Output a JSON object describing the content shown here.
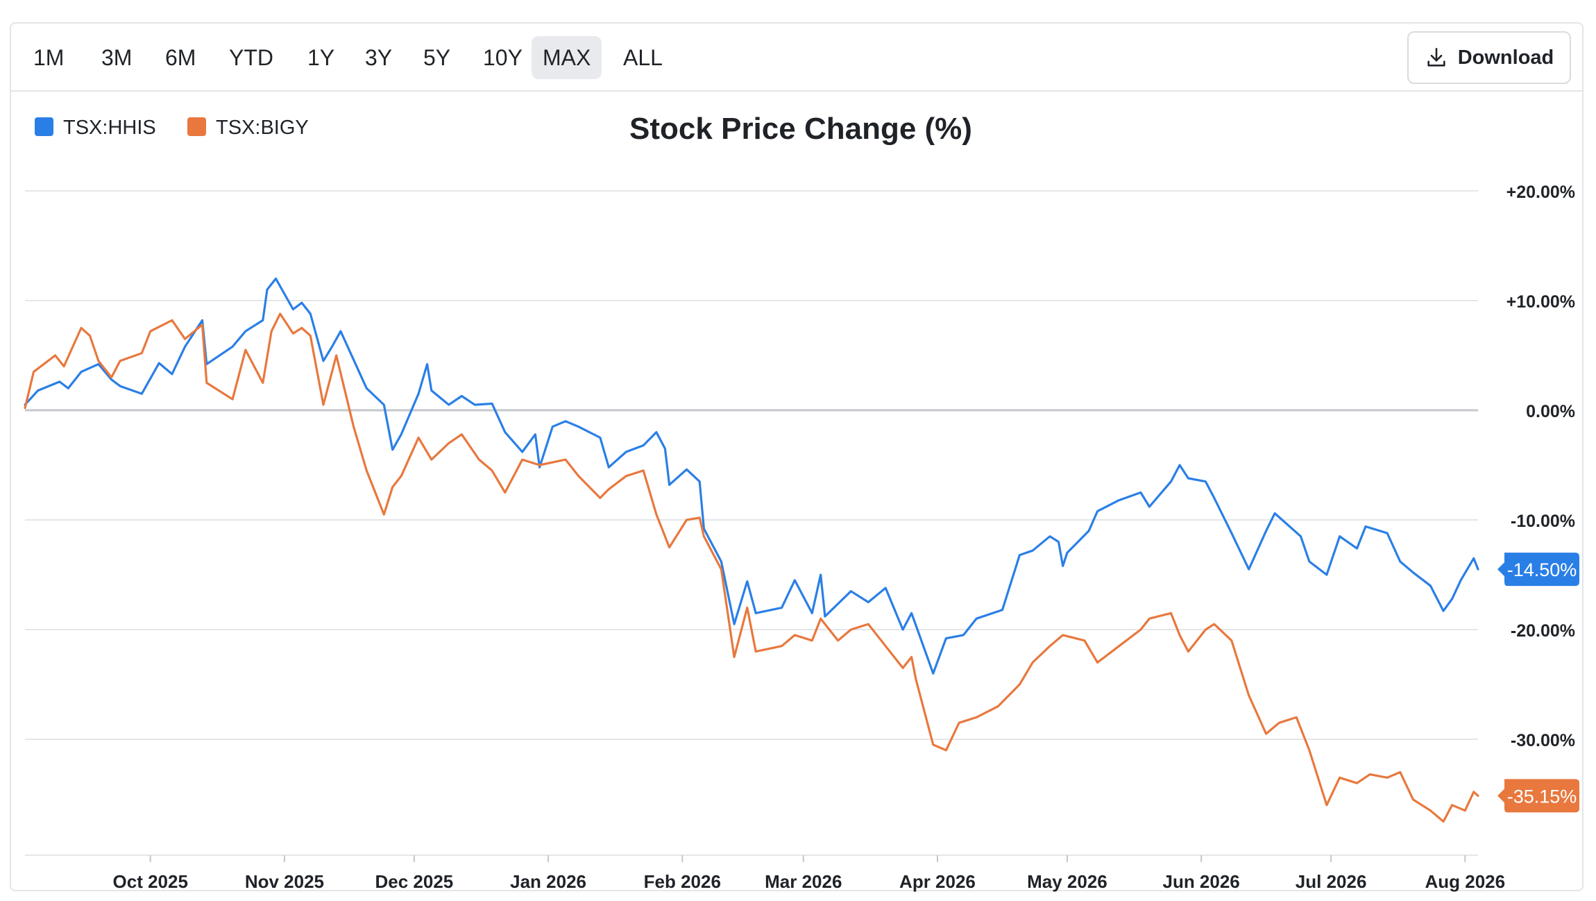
{
  "toolbar": {
    "ranges": [
      "1M",
      "3M",
      "6M",
      "YTD",
      "1Y",
      "3Y",
      "5Y",
      "10Y",
      "MAX",
      "ALL"
    ],
    "active_range": "MAX",
    "download_label": "Download",
    "download_icon": "download-icon"
  },
  "colors": {
    "hhis": "#2a7fe6",
    "bigy": "#e8783e",
    "grid": "#e4e6e9",
    "zero_line": "#c4c7cc",
    "axis_text": "#1f2328"
  },
  "chart_data": {
    "type": "line",
    "title": "Stock Price Change (%)",
    "xlabel": "",
    "ylabel": "",
    "ylim": [
      -40,
      20
    ],
    "y_ticks": [
      20,
      10,
      0,
      -10,
      -20,
      -30
    ],
    "y_tick_labels": [
      "+20.00%",
      "+10.00%",
      "0.00%",
      "-10.00%",
      "-20.00%",
      "-30.00%"
    ],
    "x_range": [
      "2025-09-02",
      "2026-08-04"
    ],
    "x_ticks": [
      "2025-10-01",
      "2025-11-01",
      "2025-12-01",
      "2026-01-01",
      "2026-02-01",
      "2026-03-01",
      "2026-04-01",
      "2026-05-01",
      "2026-06-01",
      "2026-07-01",
      "2026-08-01"
    ],
    "x_tick_labels": [
      "Oct 2025",
      "Nov 2025",
      "Dec 2025",
      "Jan 2026",
      "Feb 2026",
      "Mar 2026",
      "Apr 2026",
      "May 2026",
      "Jun 2026",
      "Jul 2026",
      "Aug 2026"
    ],
    "legend_position": "top-left",
    "grid": true,
    "series": [
      {
        "name": "TSX:HHIS",
        "color": "#2a7fe6",
        "last_label": "-14.50%",
        "points": [
          [
            "2025-09-02",
            0.5
          ],
          [
            "2025-09-05",
            1.8
          ],
          [
            "2025-09-10",
            2.6
          ],
          [
            "2025-09-12",
            2.0
          ],
          [
            "2025-09-15",
            3.5
          ],
          [
            "2025-09-19",
            4.2
          ],
          [
            "2025-09-22",
            2.8
          ],
          [
            "2025-09-24",
            2.2
          ],
          [
            "2025-09-29",
            1.5
          ],
          [
            "2025-10-03",
            4.3
          ],
          [
            "2025-10-06",
            3.3
          ],
          [
            "2025-10-09",
            5.8
          ],
          [
            "2025-10-13",
            8.2
          ],
          [
            "2025-10-14",
            4.2
          ],
          [
            "2025-10-20",
            5.8
          ],
          [
            "2025-10-23",
            7.2
          ],
          [
            "2025-10-27",
            8.2
          ],
          [
            "2025-10-28",
            11.0
          ],
          [
            "2025-10-30",
            12.0
          ],
          [
            "2025-11-03",
            9.2
          ],
          [
            "2025-11-05",
            9.8
          ],
          [
            "2025-11-07",
            8.8
          ],
          [
            "2025-11-10",
            4.5
          ],
          [
            "2025-11-12",
            5.8
          ],
          [
            "2025-11-14",
            7.2
          ],
          [
            "2025-11-17",
            4.6
          ],
          [
            "2025-11-20",
            2.0
          ],
          [
            "2025-11-24",
            0.5
          ],
          [
            "2025-11-26",
            -3.6
          ],
          [
            "2025-11-28",
            -2.2
          ],
          [
            "2025-12-02",
            1.5
          ],
          [
            "2025-12-04",
            4.2
          ],
          [
            "2025-12-05",
            1.8
          ],
          [
            "2025-12-09",
            0.5
          ],
          [
            "2025-12-12",
            1.3
          ],
          [
            "2025-12-15",
            0.5
          ],
          [
            "2025-12-19",
            0.6
          ],
          [
            "2025-12-22",
            -2.0
          ],
          [
            "2025-12-26",
            -3.8
          ],
          [
            "2025-12-29",
            -2.2
          ],
          [
            "2025-12-30",
            -5.2
          ],
          [
            "2026-01-02",
            -1.5
          ],
          [
            "2026-01-05",
            -1.0
          ],
          [
            "2026-01-08",
            -1.5
          ],
          [
            "2026-01-13",
            -2.5
          ],
          [
            "2026-01-15",
            -5.2
          ],
          [
            "2026-01-19",
            -3.8
          ],
          [
            "2026-01-23",
            -3.2
          ],
          [
            "2026-01-26",
            -2.0
          ],
          [
            "2026-01-28",
            -3.5
          ],
          [
            "2026-01-29",
            -6.8
          ],
          [
            "2026-02-02",
            -5.4
          ],
          [
            "2026-02-05",
            -6.5
          ],
          [
            "2026-02-06",
            -10.8
          ],
          [
            "2026-02-10",
            -13.8
          ],
          [
            "2026-02-13",
            -19.5
          ],
          [
            "2026-02-16",
            -15.6
          ],
          [
            "2026-02-18",
            -18.5
          ],
          [
            "2026-02-24",
            -18.0
          ],
          [
            "2026-02-27",
            -15.5
          ],
          [
            "2026-03-03",
            -18.5
          ],
          [
            "2026-03-05",
            -15.0
          ],
          [
            "2026-03-06",
            -18.8
          ],
          [
            "2026-03-12",
            -16.5
          ],
          [
            "2026-03-16",
            -17.5
          ],
          [
            "2026-03-20",
            -16.2
          ],
          [
            "2026-03-24",
            -20.0
          ],
          [
            "2026-03-26",
            -18.5
          ],
          [
            "2026-03-31",
            -24.0
          ],
          [
            "2026-04-03",
            -20.8
          ],
          [
            "2026-04-07",
            -20.5
          ],
          [
            "2026-04-10",
            -19.0
          ],
          [
            "2026-04-16",
            -18.2
          ],
          [
            "2026-04-20",
            -13.2
          ],
          [
            "2026-04-23",
            -12.8
          ],
          [
            "2026-04-27",
            -11.5
          ],
          [
            "2026-04-29",
            -12.0
          ],
          [
            "2026-04-30",
            -14.2
          ],
          [
            "2026-05-01",
            -13.0
          ],
          [
            "2026-05-06",
            -11.0
          ],
          [
            "2026-05-08",
            -9.2
          ],
          [
            "2026-05-13",
            -8.2
          ],
          [
            "2026-05-18",
            -7.5
          ],
          [
            "2026-05-20",
            -8.8
          ],
          [
            "2026-05-25",
            -6.5
          ],
          [
            "2026-05-27",
            -5.0
          ],
          [
            "2026-05-29",
            -6.2
          ],
          [
            "2026-06-02",
            -6.5
          ],
          [
            "2026-06-04",
            -8.0
          ],
          [
            "2026-06-08",
            -11.2
          ],
          [
            "2026-06-12",
            -14.5
          ],
          [
            "2026-06-16",
            -11.0
          ],
          [
            "2026-06-18",
            -9.4
          ],
          [
            "2026-06-24",
            -11.5
          ],
          [
            "2026-06-26",
            -13.8
          ],
          [
            "2026-06-30",
            -15.0
          ],
          [
            "2026-07-03",
            -11.5
          ],
          [
            "2026-07-07",
            -12.6
          ],
          [
            "2026-07-09",
            -10.6
          ],
          [
            "2026-07-14",
            -11.2
          ],
          [
            "2026-07-17",
            -13.8
          ],
          [
            "2026-07-20",
            -14.8
          ],
          [
            "2026-07-24",
            -16.0
          ],
          [
            "2026-07-27",
            -18.3
          ],
          [
            "2026-07-29",
            -17.2
          ],
          [
            "2026-07-31",
            -15.5
          ],
          [
            "2026-08-03",
            -13.5
          ],
          [
            "2026-08-04",
            -14.5
          ]
        ]
      },
      {
        "name": "TSX:BIGY",
        "color": "#e8783e",
        "last_label": "-35.15%",
        "points": [
          [
            "2025-09-02",
            0.2
          ],
          [
            "2025-09-04",
            3.5
          ],
          [
            "2025-09-09",
            5.0
          ],
          [
            "2025-09-11",
            4.0
          ],
          [
            "2025-09-15",
            7.5
          ],
          [
            "2025-09-17",
            6.8
          ],
          [
            "2025-09-19",
            4.5
          ],
          [
            "2025-09-22",
            3.0
          ],
          [
            "2025-09-24",
            4.5
          ],
          [
            "2025-09-29",
            5.2
          ],
          [
            "2025-10-01",
            7.2
          ],
          [
            "2025-10-06",
            8.2
          ],
          [
            "2025-10-09",
            6.5
          ],
          [
            "2025-10-13",
            7.8
          ],
          [
            "2025-10-14",
            2.5
          ],
          [
            "2025-10-20",
            1.0
          ],
          [
            "2025-10-23",
            5.5
          ],
          [
            "2025-10-27",
            2.5
          ],
          [
            "2025-10-29",
            7.2
          ],
          [
            "2025-10-31",
            8.8
          ],
          [
            "2025-11-03",
            7.0
          ],
          [
            "2025-11-05",
            7.5
          ],
          [
            "2025-11-07",
            6.8
          ],
          [
            "2025-11-10",
            0.5
          ],
          [
            "2025-11-13",
            5.0
          ],
          [
            "2025-11-17",
            -1.5
          ],
          [
            "2025-11-20",
            -5.5
          ],
          [
            "2025-11-24",
            -9.5
          ],
          [
            "2025-11-26",
            -7.0
          ],
          [
            "2025-11-28",
            -6.0
          ],
          [
            "2025-12-02",
            -2.5
          ],
          [
            "2025-12-05",
            -4.5
          ],
          [
            "2025-12-09",
            -3.0
          ],
          [
            "2025-12-12",
            -2.2
          ],
          [
            "2025-12-16",
            -4.5
          ],
          [
            "2025-12-19",
            -5.5
          ],
          [
            "2025-12-22",
            -7.5
          ],
          [
            "2025-12-26",
            -4.5
          ],
          [
            "2025-12-30",
            -5.0
          ],
          [
            "2026-01-05",
            -4.5
          ],
          [
            "2026-01-08",
            -6.0
          ],
          [
            "2026-01-13",
            -8.0
          ],
          [
            "2026-01-15",
            -7.2
          ],
          [
            "2026-01-19",
            -6.0
          ],
          [
            "2026-01-23",
            -5.5
          ],
          [
            "2026-01-26",
            -9.5
          ],
          [
            "2026-01-29",
            -12.5
          ],
          [
            "2026-02-02",
            -10.0
          ],
          [
            "2026-02-05",
            -9.8
          ],
          [
            "2026-02-06",
            -11.5
          ],
          [
            "2026-02-10",
            -14.5
          ],
          [
            "2026-02-13",
            -22.5
          ],
          [
            "2026-02-16",
            -18.0
          ],
          [
            "2026-02-18",
            -22.0
          ],
          [
            "2026-02-24",
            -21.5
          ],
          [
            "2026-02-27",
            -20.5
          ],
          [
            "2026-03-03",
            -21.0
          ],
          [
            "2026-03-05",
            -19.0
          ],
          [
            "2026-03-09",
            -21.0
          ],
          [
            "2026-03-12",
            -20.0
          ],
          [
            "2026-03-16",
            -19.5
          ],
          [
            "2026-03-20",
            -21.5
          ],
          [
            "2026-03-24",
            -23.5
          ],
          [
            "2026-03-26",
            -22.5
          ],
          [
            "2026-03-27",
            -24.5
          ],
          [
            "2026-03-31",
            -30.5
          ],
          [
            "2026-04-03",
            -31.0
          ],
          [
            "2026-04-06",
            -28.5
          ],
          [
            "2026-04-10",
            -28.0
          ],
          [
            "2026-04-15",
            -27.0
          ],
          [
            "2026-04-20",
            -25.0
          ],
          [
            "2026-04-23",
            -23.0
          ],
          [
            "2026-04-27",
            -21.5
          ],
          [
            "2026-04-30",
            -20.5
          ],
          [
            "2026-05-05",
            -21.0
          ],
          [
            "2026-05-08",
            -23.0
          ],
          [
            "2026-05-13",
            -21.5
          ],
          [
            "2026-05-18",
            -20.0
          ],
          [
            "2026-05-20",
            -19.0
          ],
          [
            "2026-05-25",
            -18.5
          ],
          [
            "2026-05-27",
            -20.5
          ],
          [
            "2026-05-29",
            -22.0
          ],
          [
            "2026-06-02",
            -20.0
          ],
          [
            "2026-06-04",
            -19.5
          ],
          [
            "2026-06-08",
            -21.0
          ],
          [
            "2026-06-12",
            -26.0
          ],
          [
            "2026-06-16",
            -29.5
          ],
          [
            "2026-06-19",
            -28.5
          ],
          [
            "2026-06-23",
            -28.0
          ],
          [
            "2026-06-26",
            -31.0
          ],
          [
            "2026-06-30",
            -36.0
          ],
          [
            "2026-07-03",
            -33.5
          ],
          [
            "2026-07-07",
            -34.0
          ],
          [
            "2026-07-10",
            -33.2
          ],
          [
            "2026-07-14",
            -33.5
          ],
          [
            "2026-07-17",
            -33.0
          ],
          [
            "2026-07-20",
            -35.5
          ],
          [
            "2026-07-24",
            -36.5
          ],
          [
            "2026-07-27",
            -37.5
          ],
          [
            "2026-07-29",
            -36.0
          ],
          [
            "2026-08-01",
            -36.5
          ],
          [
            "2026-08-03",
            -34.8
          ],
          [
            "2026-08-04",
            -35.15
          ]
        ]
      }
    ]
  }
}
